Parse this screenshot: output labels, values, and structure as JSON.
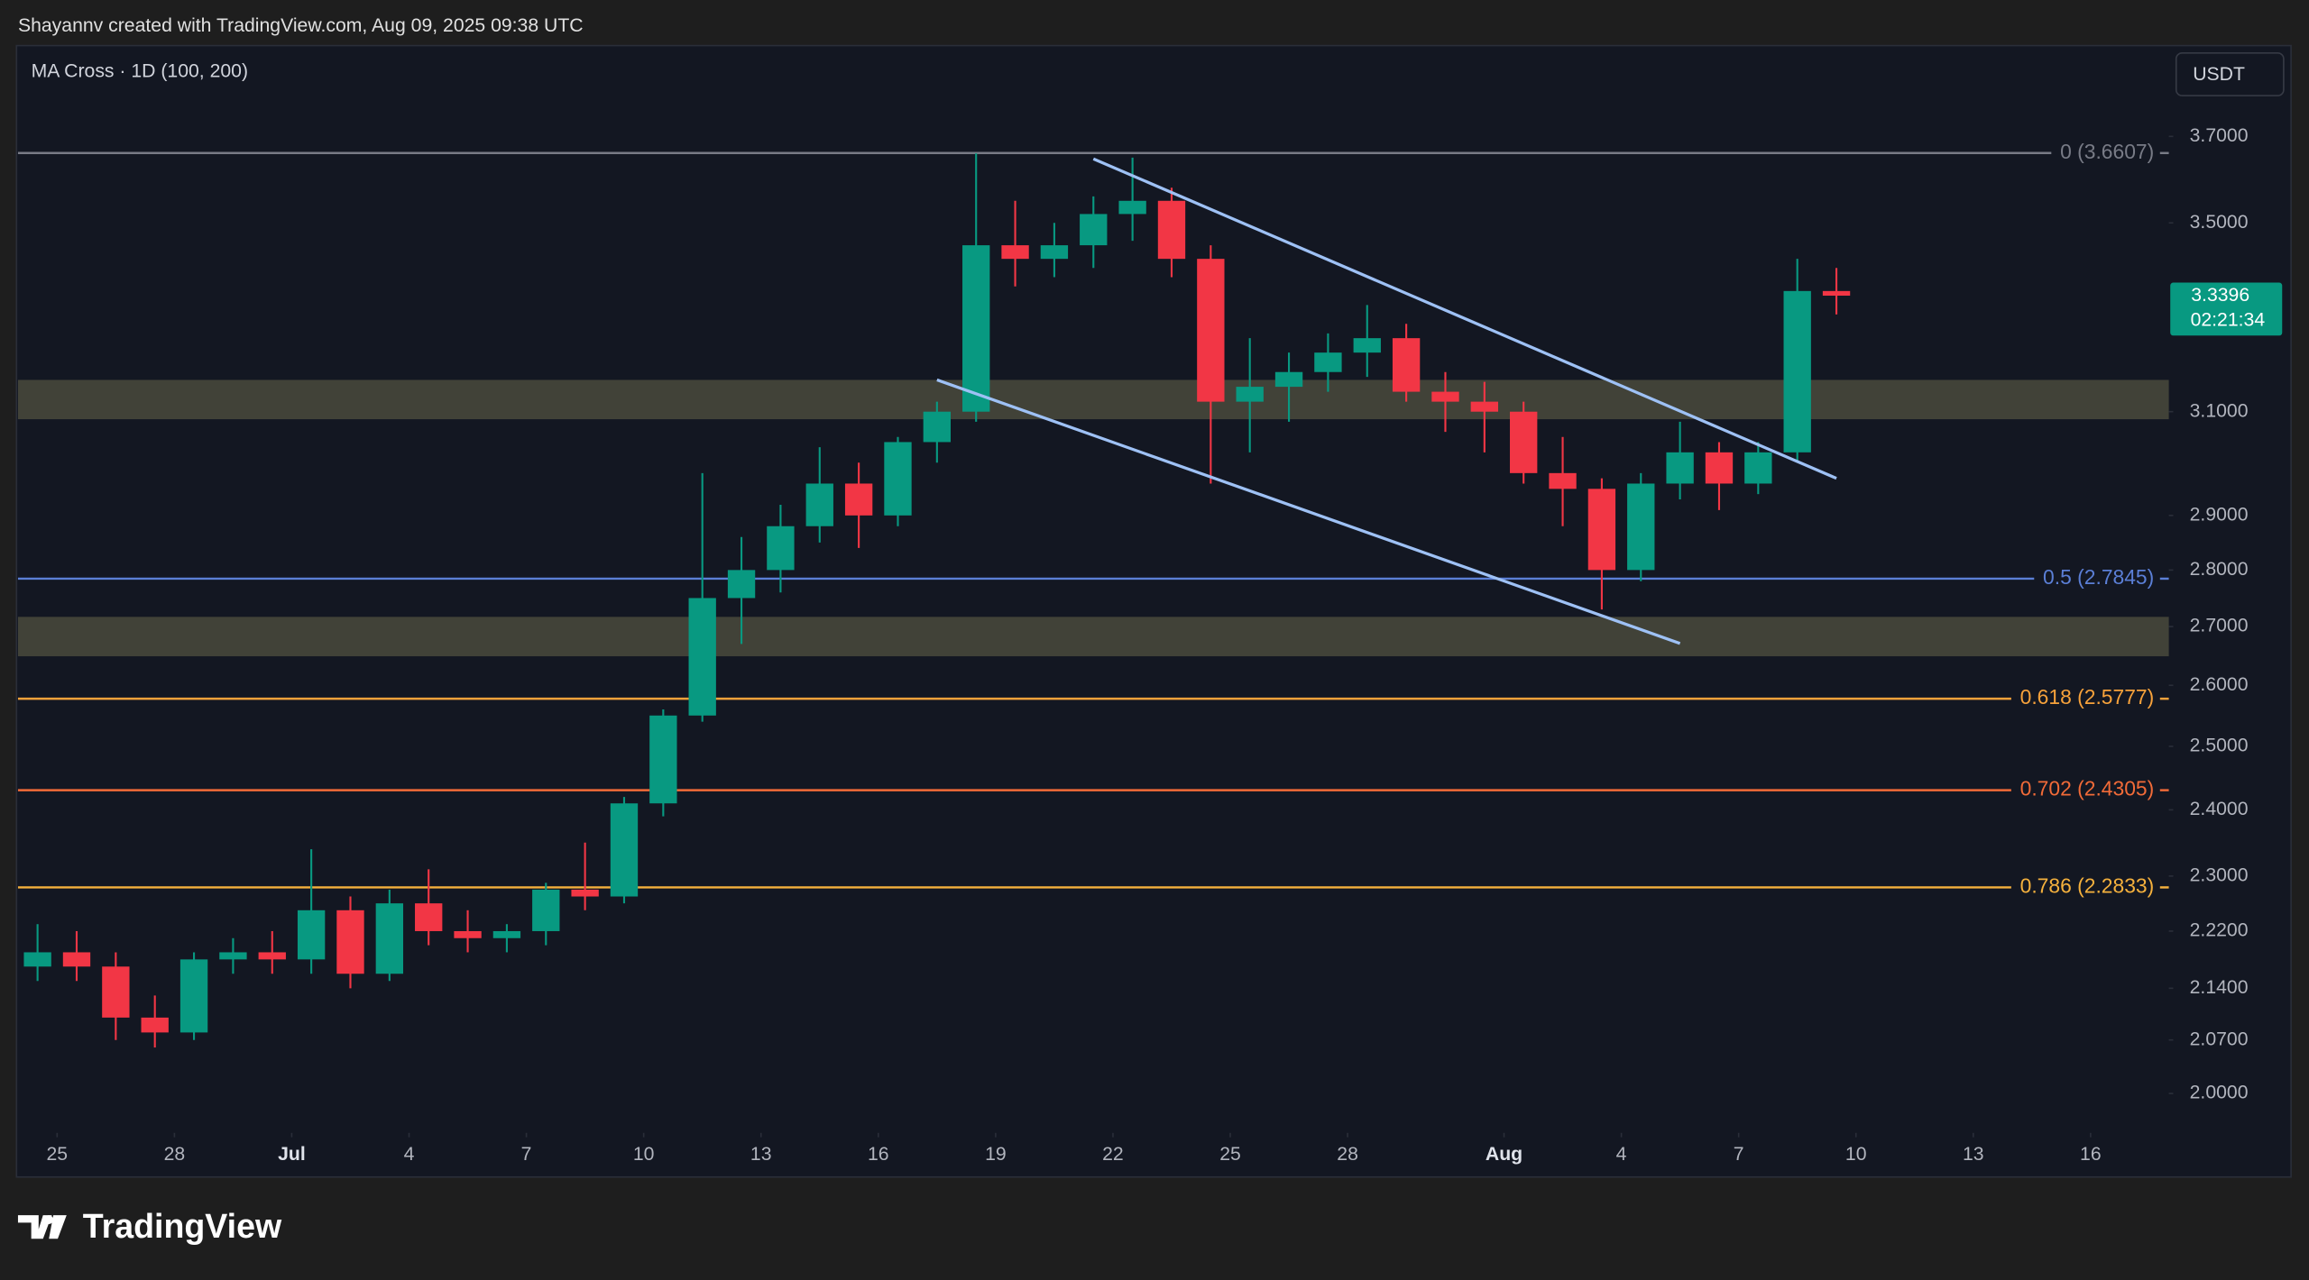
{
  "header": {
    "credit": "Shayannv created with TradingView.com, Aug 09, 2025 09:38 UTC",
    "indicator": "MA Cross · 1D (100, 200)",
    "currency": "USDT"
  },
  "footer": {
    "brand": "TradingView"
  },
  "chart_data": {
    "type": "candlestick",
    "log_scale": true,
    "up_color": "#089981",
    "down_color": "#f23645",
    "x": [
      "06-24",
      "06-25",
      "06-26",
      "06-27",
      "06-28",
      "06-29",
      "06-30",
      "07-01",
      "07-02",
      "07-03",
      "07-04",
      "07-05",
      "07-06",
      "07-07",
      "07-08",
      "07-09",
      "07-10",
      "07-11",
      "07-12",
      "07-13",
      "07-14",
      "07-15",
      "07-16",
      "07-17",
      "07-18",
      "07-19",
      "07-20",
      "07-21",
      "07-22",
      "07-23",
      "07-24",
      "07-25",
      "07-26",
      "07-27",
      "07-28",
      "07-29",
      "07-30",
      "07-31",
      "08-01",
      "08-02",
      "08-03",
      "08-04",
      "08-05",
      "08-06",
      "08-07",
      "08-08",
      "08-09"
    ],
    "open": [
      2.17,
      2.19,
      2.17,
      2.1,
      2.08,
      2.18,
      2.19,
      2.18,
      2.25,
      2.16,
      2.26,
      2.22,
      2.21,
      2.22,
      2.28,
      2.27,
      2.41,
      2.55,
      2.75,
      2.8,
      2.88,
      2.96,
      2.9,
      3.04,
      3.1,
      3.45,
      3.42,
      3.45,
      3.52,
      3.55,
      3.42,
      3.12,
      3.15,
      3.18,
      3.22,
      3.25,
      3.14,
      3.12,
      3.1,
      2.98,
      2.95,
      2.8,
      2.96,
      3.02,
      2.96,
      3.02,
      3.35
    ],
    "high": [
      2.23,
      2.22,
      2.19,
      2.13,
      2.19,
      2.21,
      2.22,
      2.34,
      2.27,
      2.28,
      2.31,
      2.25,
      2.23,
      2.29,
      2.35,
      2.42,
      2.56,
      2.98,
      2.86,
      2.92,
      3.03,
      3.0,
      3.05,
      3.12,
      3.66,
      3.55,
      3.5,
      3.56,
      3.65,
      3.58,
      3.45,
      3.25,
      3.22,
      3.26,
      3.32,
      3.28,
      3.18,
      3.16,
      3.12,
      3.05,
      2.97,
      2.98,
      3.08,
      3.04,
      3.04,
      3.42,
      3.4
    ],
    "low": [
      2.15,
      2.15,
      2.07,
      2.06,
      2.07,
      2.16,
      2.16,
      2.16,
      2.14,
      2.15,
      2.2,
      2.19,
      2.19,
      2.2,
      2.25,
      2.26,
      2.39,
      2.54,
      2.67,
      2.76,
      2.85,
      2.84,
      2.88,
      3.0,
      3.08,
      3.36,
      3.38,
      3.4,
      3.46,
      3.38,
      2.96,
      3.02,
      3.08,
      3.14,
      3.17,
      3.12,
      3.06,
      3.02,
      2.96,
      2.88,
      2.73,
      2.78,
      2.93,
      2.91,
      2.94,
      3.0,
      3.3
    ],
    "close": [
      2.19,
      2.17,
      2.1,
      2.08,
      2.18,
      2.19,
      2.18,
      2.25,
      2.16,
      2.26,
      2.22,
      2.21,
      2.22,
      2.28,
      2.27,
      2.41,
      2.55,
      2.75,
      2.8,
      2.88,
      2.96,
      2.9,
      3.04,
      3.1,
      3.45,
      3.42,
      3.45,
      3.52,
      3.55,
      3.42,
      3.12,
      3.15,
      3.18,
      3.22,
      3.25,
      3.14,
      3.12,
      3.1,
      2.98,
      2.95,
      2.8,
      2.96,
      3.02,
      2.96,
      3.02,
      3.35,
      3.34
    ],
    "xlim": [
      "06-24",
      "08-18"
    ],
    "xticks": [
      {
        "value": "06-25",
        "label": "25"
      },
      {
        "value": "06-28",
        "label": "28"
      },
      {
        "value": "07-01",
        "label": "Jul"
      },
      {
        "value": "07-04",
        "label": "4"
      },
      {
        "value": "07-07",
        "label": "7"
      },
      {
        "value": "07-10",
        "label": "10"
      },
      {
        "value": "07-13",
        "label": "13"
      },
      {
        "value": "07-16",
        "label": "16"
      },
      {
        "value": "07-19",
        "label": "19"
      },
      {
        "value": "07-22",
        "label": "22"
      },
      {
        "value": "07-25",
        "label": "25"
      },
      {
        "value": "07-28",
        "label": "28"
      },
      {
        "value": "08-01",
        "label": "Aug"
      },
      {
        "value": "08-04",
        "label": "4"
      },
      {
        "value": "08-07",
        "label": "7"
      },
      {
        "value": "08-10",
        "label": "10"
      },
      {
        "value": "08-13",
        "label": "13"
      },
      {
        "value": "08-16",
        "label": "16"
      }
    ],
    "ylim": [
      1.95,
      3.915
    ],
    "yticks": [
      {
        "value": 3.7,
        "label": "3.7000"
      },
      {
        "value": 3.5,
        "label": "3.5000"
      },
      {
        "value": 3.1,
        "label": "3.1000"
      },
      {
        "value": 2.9,
        "label": "2.9000"
      },
      {
        "value": 2.8,
        "label": "2.8000"
      },
      {
        "value": 2.7,
        "label": "2.7000"
      },
      {
        "value": 2.6,
        "label": "2.6000"
      },
      {
        "value": 2.5,
        "label": "2.5000"
      },
      {
        "value": 2.4,
        "label": "2.4000"
      },
      {
        "value": 2.3,
        "label": "2.3000"
      },
      {
        "value": 2.22,
        "label": "2.2200"
      },
      {
        "value": 2.14,
        "label": "2.1400"
      },
      {
        "value": 2.07,
        "label": "2.0700"
      },
      {
        "value": 2,
        "label": "2.0000"
      }
    ],
    "fib_levels": [
      {
        "value": 3.6607,
        "label": "0 (3.6607)",
        "color": "#787b86"
      },
      {
        "value": 2.7845,
        "label": "0.5 (2.7845)",
        "color": "#5b7fd6"
      },
      {
        "value": 2.5777,
        "label": "0.618 (2.5777)",
        "color": "#f7a23b"
      },
      {
        "value": 2.4305,
        "label": "0.702 (2.4305)",
        "color": "#f26b38"
      },
      {
        "value": 2.2833,
        "label": "0.786 (2.2833)",
        "color": "#f5b13d"
      }
    ],
    "zones": [
      [
        3.085,
        3.164
      ],
      [
        2.649,
        2.717
      ]
    ],
    "trendlines": [
      {
        "x": [
          "07-21",
          "08-09"
        ],
        "values": [
          3.647,
          2.97
        ]
      },
      {
        "x": [
          "07-17",
          "08-05"
        ],
        "values": [
          3.164,
          2.671
        ]
      }
    ],
    "last_price": {
      "value": 3.3396,
      "label": "3.3396",
      "countdown": "02:21:34"
    }
  }
}
